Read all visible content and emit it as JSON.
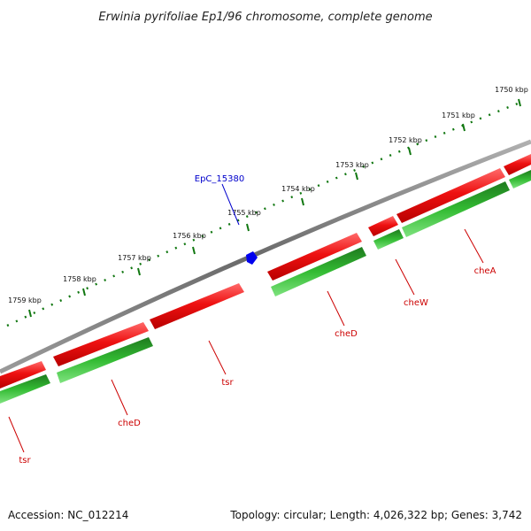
{
  "title": "Erwinia pyrifoliae Ep1/96 chromosome, complete genome",
  "footer": {
    "accession": "Accession: NC_012214",
    "summary": "Topology: circular; Length: 4,026,322 bp; Genes: 3,742"
  },
  "colors": {
    "forward_gene": "#ee1111",
    "reverse_gene": "#33bb33",
    "backbone": "#808080",
    "ruler": "#117711",
    "marker": "#0000ee",
    "gene_label": "#cc0000",
    "marker_label": "#0000cc"
  },
  "ruler_labels": [
    "1750 kbp",
    "1751 kbp",
    "1752 kbp",
    "1753 kbp",
    "1754 kbp",
    "1755 kbp",
    "1756 kbp",
    "1757 kbp",
    "1758 kbp",
    "1759 kbp"
  ],
  "gene_labels": [
    "cheA",
    "cheW",
    "cheD",
    "tsr",
    "cheD",
    "tsr"
  ],
  "marker": {
    "label": "EpC_15380",
    "icon": "pentagon-marker-icon"
  }
}
